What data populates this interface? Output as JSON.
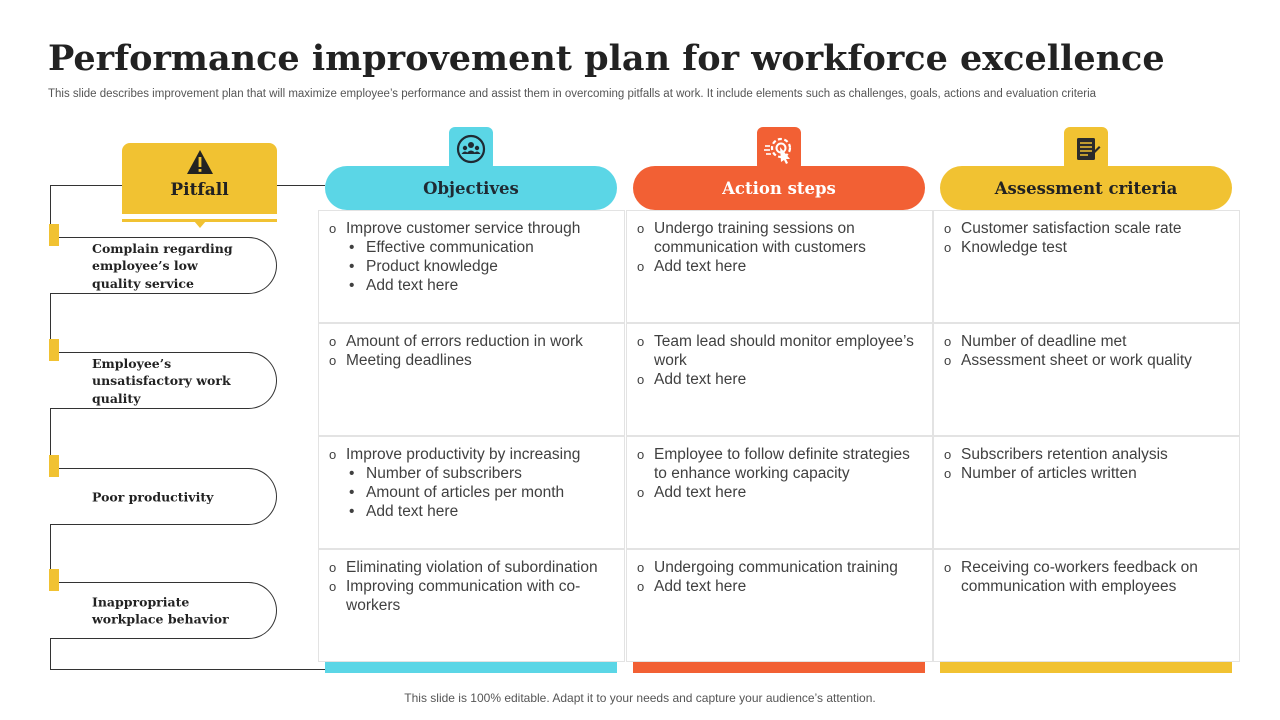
{
  "title": "Performance improvement plan for workforce excellence",
  "subtitle": "This slide describes improvement plan that will maximize employee’s performance and assist them in overcoming pitfalls at work. It include elements such as challenges, goals, actions and evaluation criteria",
  "footer": "This slide is 100% editable. Adapt it to your needs and capture your audience’s attention.",
  "colors": {
    "yellow": "#f1c232",
    "cyan": "#5bd6e6",
    "orange": "#f26034"
  },
  "pitfall": {
    "label": "Pitfall",
    "icon": "warning-icon",
    "items": [
      "Complain regarding employee’s low quality service",
      "Employee’s unsatisfactory work quality",
      "Poor productivity",
      "Inappropriate workplace behavior"
    ]
  },
  "columns": [
    {
      "label": "Objectives",
      "icon": "team-icon"
    },
    {
      "label": "Action steps",
      "icon": "target-click-icon"
    },
    {
      "label": "Assessment criteria",
      "icon": "checklist-icon"
    }
  ],
  "rows": [
    {
      "objectives": [
        {
          "t": "Improve customer service through",
          "s": [
            "Effective communication",
            "Product knowledge",
            "Add text here"
          ]
        }
      ],
      "actions": [
        {
          "t": "Undergo training sessions on communication with customers"
        },
        {
          "t": "Add text here"
        }
      ],
      "assessment": [
        {
          "t": "Customer satisfaction scale rate"
        },
        {
          "t": "Knowledge test"
        }
      ]
    },
    {
      "objectives": [
        {
          "t": "Amount of errors reduction in work"
        },
        {
          "t": "Meeting deadlines"
        }
      ],
      "actions": [
        {
          "t": "Team lead should monitor employee’s work"
        },
        {
          "t": "Add text here"
        }
      ],
      "assessment": [
        {
          "t": "Number of deadline met"
        },
        {
          "t": "Assessment sheet or work quality"
        }
      ]
    },
    {
      "objectives": [
        {
          "t": "Improve productivity by increasing",
          "s": [
            "Number of subscribers",
            "Amount of articles per month",
            "Add text here"
          ]
        }
      ],
      "actions": [
        {
          "t": "Employee to follow definite strategies to enhance working capacity"
        },
        {
          "t": "Add text here"
        }
      ],
      "assessment": [
        {
          "t": "Subscribers retention analysis"
        },
        {
          "t": "Number of articles written"
        }
      ]
    },
    {
      "objectives": [
        {
          "t": "Eliminating violation of subordination"
        },
        {
          "t": "Improving communication with co-workers"
        }
      ],
      "actions": [
        {
          "t": "Undergoing communication training"
        },
        {
          "t": "Add text here"
        }
      ],
      "assessment": [
        {
          "t": "Receiving co-workers feedback on communication with employees"
        }
      ]
    }
  ]
}
